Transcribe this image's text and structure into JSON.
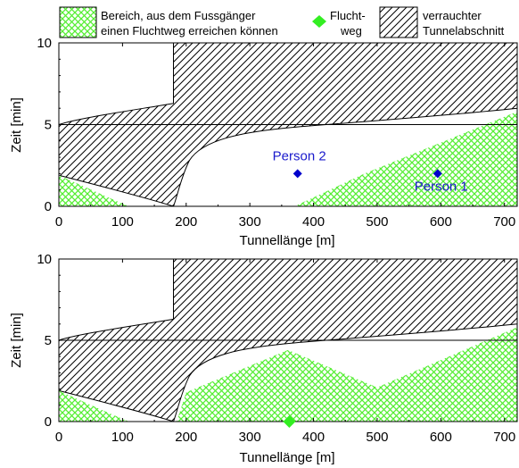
{
  "legend": {
    "items": [
      {
        "name": "pedestrian-reach-area",
        "line1": "Bereich, aus dem Fussgänger",
        "line2": "einen Fluchtweg erreichen können",
        "pattern": "crosshatch-green"
      },
      {
        "name": "escape-route",
        "line1": "Flucht-",
        "line2": "weg",
        "pattern": "diamond-green"
      },
      {
        "name": "smoke-section",
        "line1": "verrauchter",
        "line2": "Tunnelabschnitt",
        "pattern": "diagonal-hatch-black"
      }
    ]
  },
  "colors": {
    "reach_fill": "#55ee33",
    "escape_marker": "#33ee22",
    "person_marker": "#0000cc",
    "person_text": "#1a1acc",
    "hatch": "#000000"
  },
  "chart_data": [
    {
      "type": "area",
      "title": "",
      "xlabel": "Tunnellänge [m]",
      "ylabel": "Zeit [min]",
      "xlim": [
        0,
        720
      ],
      "ylim": [
        0,
        10
      ],
      "xticks": [
        0,
        100,
        200,
        300,
        400,
        500,
        600,
        700
      ],
      "yticks": [
        0,
        5,
        10
      ],
      "reference_line_y": 5,
      "smoke_region": {
        "upper_boundary": [
          [
            0,
            5
          ],
          [
            180,
            5
          ],
          [
            180,
            10
          ],
          [
            720,
            10
          ],
          [
            720,
            6
          ],
          [
            620,
            5.6
          ],
          [
            500,
            5.2
          ],
          [
            400,
            5.0
          ],
          [
            300,
            4.6
          ],
          [
            240,
            4.2
          ],
          [
            200,
            3.3
          ],
          [
            185,
            1.5
          ],
          [
            180,
            0
          ]
        ],
        "lower_boundary": [
          [
            0,
            1.9
          ],
          [
            50,
            1.5
          ],
          [
            100,
            1.1
          ],
          [
            180,
            0
          ]
        ],
        "top_left_edge": [
          [
            0,
            5
          ],
          [
            40,
            5.3
          ],
          [
            100,
            5.8
          ],
          [
            180,
            6.2
          ],
          [
            180,
            10
          ]
        ]
      },
      "reach_regions": [
        [
          [
            0,
            1.9
          ],
          [
            40,
            1.2
          ],
          [
            80,
            0.5
          ],
          [
            110,
            0
          ],
          [
            0,
            0
          ]
        ],
        [
          [
            370,
            0
          ],
          [
            480,
            2
          ],
          [
            720,
            5.8
          ],
          [
            720,
            0
          ]
        ]
      ],
      "persons": [
        {
          "label": "Person 2",
          "x": 375,
          "y": 2
        },
        {
          "label": "Person 1",
          "x": 595,
          "y": 2
        }
      ],
      "escape_routes": []
    },
    {
      "type": "area",
      "title": "",
      "xlabel": "Tunnellänge [m]",
      "ylabel": "Zeit [min]",
      "xlim": [
        0,
        720
      ],
      "ylim": [
        0,
        10
      ],
      "xticks": [
        0,
        100,
        200,
        300,
        400,
        500,
        600,
        700
      ],
      "yticks": [
        0,
        5,
        10
      ],
      "reference_line_y": 5,
      "reach_regions": [
        [
          [
            0,
            1.9
          ],
          [
            40,
            1.2
          ],
          [
            80,
            0.5
          ],
          [
            110,
            0
          ],
          [
            0,
            0
          ]
        ],
        [
          [
            185,
            0
          ],
          [
            200,
            1.8
          ],
          [
            360,
            4.4
          ],
          [
            500,
            2.1
          ],
          [
            720,
            5.8
          ],
          [
            720,
            0
          ]
        ]
      ],
      "persons": [],
      "escape_routes": [
        {
          "x": 362,
          "y": 0
        }
      ]
    }
  ]
}
